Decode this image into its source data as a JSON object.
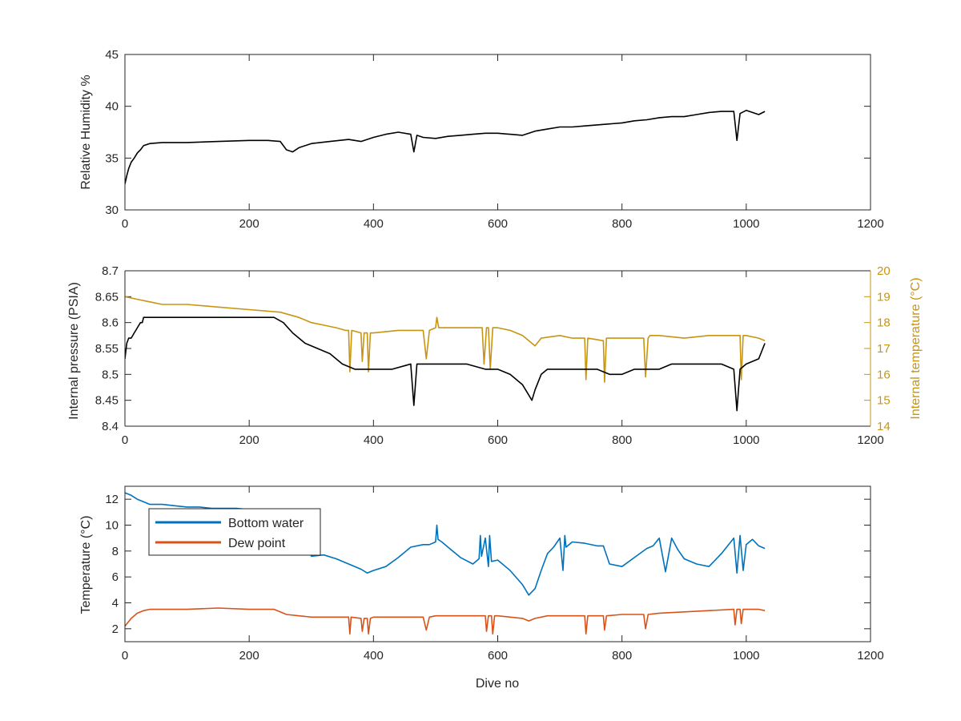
{
  "colors": {
    "humidity": "#000000",
    "pressure": "#000000",
    "internal_temp": "#C89512",
    "bottom_water": "#0072BD",
    "dew_point": "#D95319",
    "axes": "#262626"
  },
  "chart_data": [
    {
      "type": "line",
      "title": "",
      "xlabel": "",
      "ylabel": "Relative Humidity %",
      "xlim": [
        0,
        1200
      ],
      "ylim": [
        30,
        45
      ],
      "xticks": [
        0,
        200,
        400,
        600,
        800,
        1000,
        1200
      ],
      "yticks": [
        30,
        35,
        40,
        45
      ],
      "series": [
        {
          "color": "#000000",
          "x": [
            0,
            3,
            6,
            10,
            15,
            20,
            25,
            30,
            40,
            60,
            100,
            150,
            200,
            230,
            250,
            260,
            270,
            280,
            300,
            330,
            360,
            380,
            400,
            420,
            440,
            460,
            465,
            470,
            480,
            500,
            520,
            540,
            560,
            580,
            600,
            620,
            640,
            660,
            680,
            700,
            720,
            740,
            760,
            780,
            800,
            820,
            840,
            860,
            880,
            900,
            920,
            940,
            960,
            980,
            985,
            990,
            1000,
            1010,
            1020,
            1030
          ],
          "y": [
            32.5,
            33.3,
            34.0,
            34.6,
            35.0,
            35.5,
            35.8,
            36.2,
            36.4,
            36.5,
            36.5,
            36.6,
            36.7,
            36.7,
            36.6,
            35.8,
            35.6,
            36.0,
            36.4,
            36.6,
            36.8,
            36.6,
            37.0,
            37.3,
            37.5,
            37.3,
            35.6,
            37.2,
            37.0,
            36.9,
            37.1,
            37.2,
            37.3,
            37.4,
            37.4,
            37.3,
            37.2,
            37.6,
            37.8,
            38.0,
            38.0,
            38.1,
            38.2,
            38.3,
            38.4,
            38.6,
            38.7,
            38.9,
            39.0,
            39.0,
            39.2,
            39.4,
            39.5,
            39.5,
            36.7,
            39.3,
            39.6,
            39.4,
            39.2,
            39.5
          ]
        }
      ]
    },
    {
      "type": "line",
      "title": "",
      "xlabel": "",
      "ylabel": "Internal pressure (PSIA)",
      "y2label": "Internal temperature (°C)",
      "xlim": [
        0,
        1200
      ],
      "ylim": [
        8.4,
        8.7
      ],
      "y2lim": [
        14,
        20
      ],
      "xticks": [
        0,
        200,
        400,
        600,
        800,
        1000,
        1200
      ],
      "yticks": [
        8.4,
        8.45,
        8.5,
        8.55,
        8.6,
        8.65,
        8.7
      ],
      "y2ticks": [
        14,
        15,
        16,
        17,
        18,
        19,
        20
      ],
      "series": [
        {
          "axis": "left",
          "color": "#000000",
          "x": [
            0,
            3,
            6,
            10,
            15,
            20,
            25,
            28,
            30,
            40,
            60,
            100,
            150,
            200,
            240,
            255,
            270,
            290,
            310,
            330,
            350,
            370,
            400,
            430,
            460,
            465,
            470,
            480,
            500,
            520,
            550,
            580,
            600,
            620,
            640,
            650,
            655,
            660,
            670,
            680,
            700,
            720,
            740,
            760,
            780,
            800,
            820,
            840,
            860,
            880,
            900,
            920,
            940,
            960,
            980,
            985,
            990,
            1000,
            1020,
            1030
          ],
          "y": [
            8.53,
            8.56,
            8.57,
            8.57,
            8.58,
            8.59,
            8.6,
            8.6,
            8.61,
            8.61,
            8.61,
            8.61,
            8.61,
            8.61,
            8.61,
            8.6,
            8.58,
            8.56,
            8.55,
            8.54,
            8.52,
            8.51,
            8.51,
            8.51,
            8.52,
            8.44,
            8.52,
            8.52,
            8.52,
            8.52,
            8.52,
            8.51,
            8.51,
            8.5,
            8.48,
            8.46,
            8.45,
            8.47,
            8.5,
            8.51,
            8.51,
            8.51,
            8.51,
            8.51,
            8.5,
            8.5,
            8.51,
            8.51,
            8.51,
            8.52,
            8.52,
            8.52,
            8.52,
            8.52,
            8.51,
            8.43,
            8.51,
            8.52,
            8.53,
            8.56
          ]
        },
        {
          "axis": "right",
          "color": "#C89512",
          "x": [
            0,
            20,
            40,
            60,
            100,
            150,
            200,
            250,
            280,
            300,
            320,
            340,
            355,
            360,
            362,
            365,
            380,
            382,
            385,
            390,
            392,
            395,
            400,
            440,
            480,
            485,
            490,
            500,
            502,
            505,
            510,
            540,
            560,
            575,
            578,
            582,
            585,
            588,
            592,
            595,
            600,
            620,
            640,
            650,
            660,
            670,
            700,
            720,
            740,
            742,
            745,
            770,
            772,
            775,
            800,
            820,
            835,
            838,
            842,
            845,
            860,
            900,
            940,
            980,
            990,
            992,
            995,
            1000,
            1020,
            1030
          ],
          "y": [
            19.0,
            18.9,
            18.8,
            18.7,
            18.7,
            18.6,
            18.5,
            18.4,
            18.2,
            18.0,
            17.9,
            17.8,
            17.7,
            17.7,
            16.1,
            17.7,
            17.6,
            16.5,
            17.6,
            17.6,
            16.1,
            17.6,
            17.6,
            17.7,
            17.7,
            16.6,
            17.7,
            17.8,
            18.2,
            17.8,
            17.8,
            17.8,
            17.8,
            17.8,
            16.4,
            17.8,
            17.8,
            16.2,
            17.8,
            17.8,
            17.8,
            17.7,
            17.5,
            17.3,
            17.1,
            17.4,
            17.5,
            17.4,
            17.4,
            15.8,
            17.4,
            17.3,
            15.7,
            17.4,
            17.4,
            17.4,
            17.4,
            15.9,
            17.4,
            17.5,
            17.5,
            17.4,
            17.5,
            17.5,
            17.5,
            15.8,
            17.5,
            17.5,
            17.4,
            17.3
          ]
        }
      ]
    },
    {
      "type": "line",
      "title": "",
      "xlabel": "Dive no",
      "ylabel": "Temperature (°C)",
      "xlim": [
        0,
        1200
      ],
      "ylim": [
        1,
        13
      ],
      "xticks": [
        0,
        200,
        400,
        600,
        800,
        1000,
        1200
      ],
      "yticks": [
        2,
        4,
        6,
        8,
        10,
        12
      ],
      "legend": {
        "placement": "top-left",
        "entries": [
          "Bottom water",
          "Dew point"
        ]
      },
      "series": [
        {
          "name": "Bottom water",
          "color": "#0072BD",
          "x": [
            0,
            10,
            20,
            30,
            40,
            60,
            80,
            100,
            120,
            140,
            160,
            180,
            200,
            220,
            240,
            260,
            280,
            300,
            320,
            340,
            360,
            380,
            390,
            400,
            420,
            440,
            460,
            480,
            490,
            500,
            502,
            504,
            510,
            520,
            540,
            560,
            570,
            572,
            574,
            580,
            585,
            587,
            590,
            600,
            620,
            640,
            650,
            660,
            670,
            680,
            690,
            700,
            705,
            708,
            710,
            720,
            740,
            760,
            770,
            780,
            800,
            820,
            840,
            850,
            860,
            870,
            880,
            890,
            900,
            920,
            940,
            960,
            980,
            985,
            990,
            995,
            1000,
            1010,
            1020,
            1030
          ],
          "y": [
            12.5,
            12.3,
            12.0,
            11.8,
            11.6,
            11.6,
            11.5,
            11.4,
            11.4,
            11.3,
            11.3,
            11.3,
            11.2,
            11.2,
            11.1,
            10.6,
            9.5,
            7.6,
            7.7,
            7.4,
            7.0,
            6.6,
            6.3,
            6.5,
            6.8,
            7.5,
            8.3,
            8.5,
            8.5,
            8.7,
            10.0,
            8.9,
            8.7,
            8.3,
            7.5,
            7.0,
            7.4,
            9.2,
            7.6,
            9.0,
            6.8,
            9.2,
            7.2,
            7.3,
            6.5,
            5.4,
            4.6,
            5.1,
            6.5,
            7.8,
            8.3,
            9.0,
            6.5,
            9.2,
            8.3,
            8.7,
            8.6,
            8.4,
            8.4,
            7.0,
            6.8,
            7.5,
            8.2,
            8.4,
            9.0,
            6.4,
            9.0,
            8.1,
            7.4,
            7.0,
            6.8,
            7.8,
            9.0,
            6.3,
            9.2,
            6.5,
            8.5,
            8.9,
            8.4,
            8.2
          ]
        },
        {
          "name": "Dew point",
          "color": "#D95319",
          "x": [
            0,
            10,
            20,
            30,
            40,
            60,
            100,
            150,
            200,
            240,
            260,
            280,
            300,
            340,
            360,
            362,
            364,
            380,
            382,
            385,
            390,
            392,
            395,
            400,
            440,
            480,
            485,
            490,
            500,
            520,
            560,
            580,
            582,
            585,
            590,
            592,
            595,
            600,
            620,
            640,
            650,
            660,
            680,
            700,
            740,
            742,
            745,
            760,
            770,
            772,
            775,
            800,
            820,
            835,
            838,
            842,
            860,
            900,
            940,
            980,
            982,
            985,
            990,
            992,
            995,
            1000,
            1020,
            1030
          ],
          "y": [
            2.2,
            2.8,
            3.2,
            3.4,
            3.5,
            3.5,
            3.5,
            3.6,
            3.5,
            3.5,
            3.1,
            3.0,
            2.9,
            2.9,
            2.9,
            1.6,
            2.9,
            2.8,
            1.8,
            2.8,
            2.8,
            1.6,
            2.8,
            2.9,
            2.9,
            2.9,
            1.9,
            2.9,
            3.0,
            3.0,
            3.0,
            3.0,
            1.8,
            3.0,
            3.0,
            1.6,
            3.0,
            3.0,
            2.9,
            2.8,
            2.6,
            2.8,
            3.0,
            3.0,
            3.0,
            1.6,
            3.0,
            3.0,
            3.0,
            1.9,
            3.0,
            3.1,
            3.1,
            3.1,
            2.0,
            3.1,
            3.2,
            3.3,
            3.4,
            3.5,
            2.3,
            3.5,
            3.5,
            2.4,
            3.5,
            3.5,
            3.5,
            3.4
          ]
        }
      ]
    }
  ]
}
